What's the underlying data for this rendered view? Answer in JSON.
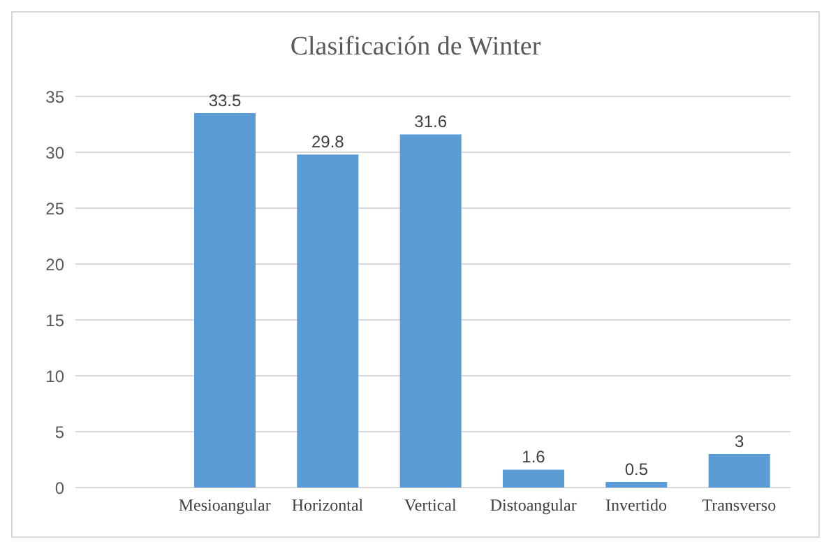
{
  "chart_data": {
    "type": "bar",
    "title": "Clasificación de Winter",
    "categories": [
      "Mesioangular",
      "Horizontal",
      "Vertical",
      "Distoangular",
      "Invertido",
      "Transverso"
    ],
    "values": [
      33.5,
      29.8,
      31.6,
      1.6,
      0.5,
      3
    ],
    "color": "#5b9bd5",
    "ylim": [
      0,
      35
    ],
    "yticks": [
      0,
      5,
      10,
      15,
      20,
      25,
      30,
      35
    ],
    "grid": "y",
    "data_labels": true
  }
}
